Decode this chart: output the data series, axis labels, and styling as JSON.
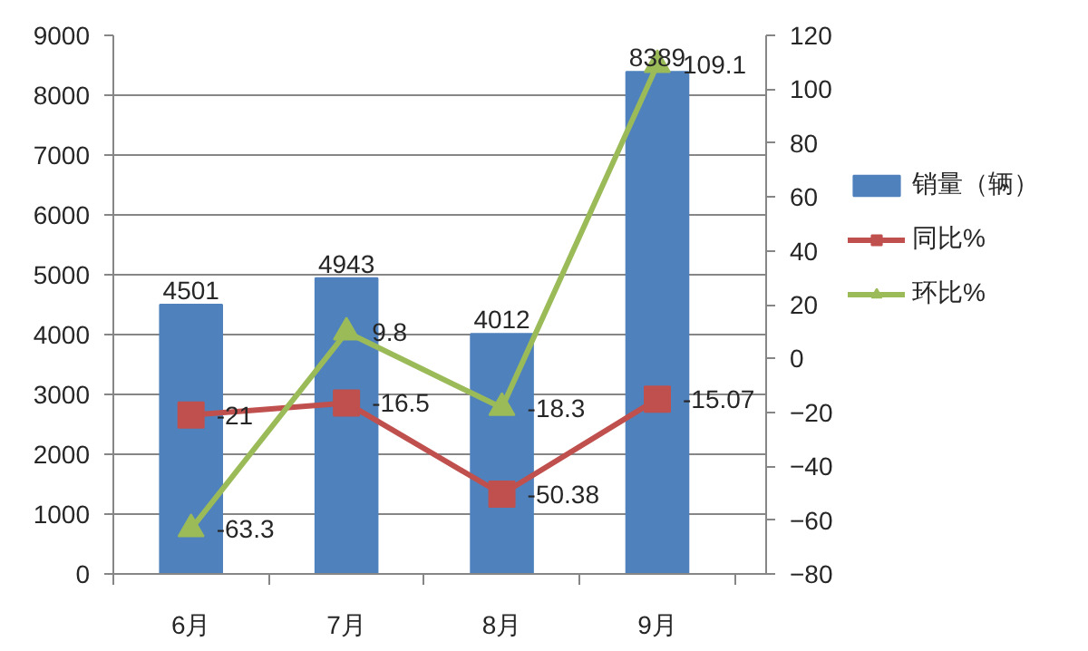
{
  "chart_data": {
    "type": "bar",
    "categories": [
      "6月",
      "7月",
      "8月",
      "9月"
    ],
    "series": [
      {
        "name": "销量（辆）",
        "color": "#4f81bd",
        "values": [
          4501,
          4943,
          4012,
          8389
        ]
      },
      {
        "name": "同比%",
        "type": "line",
        "color": "#c0504d",
        "axis": "y2",
        "marker": "square",
        "values": [
          -21,
          -16.5,
          -50.38,
          -15.07
        ]
      },
      {
        "name": "环比%",
        "type": "line",
        "color": "#9bbb59",
        "axis": "y2",
        "marker": "triangle",
        "values": [
          -63.3,
          9.8,
          -18.3,
          109.1
        ]
      }
    ],
    "ylim": [
      0,
      9000
    ],
    "yticks": [
      0,
      1000,
      2000,
      3000,
      4000,
      5000,
      6000,
      7000,
      8000,
      9000
    ],
    "y2lim": [
      -80,
      120
    ],
    "y2ticks": [
      -80,
      -60,
      -40,
      -20,
      0,
      20,
      40,
      60,
      80,
      100,
      120
    ],
    "grid": "y",
    "legend": "right",
    "data_labels": true
  }
}
